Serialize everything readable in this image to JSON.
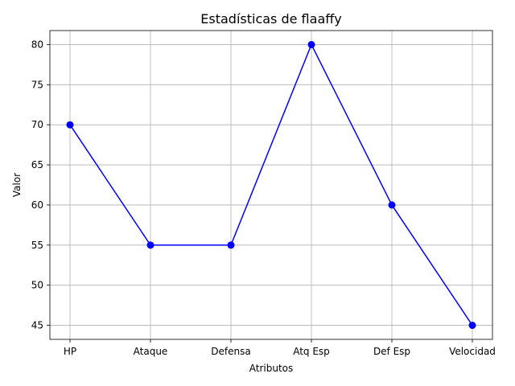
{
  "chart_data": {
    "type": "line",
    "title": "Estadísticas de flaaffy",
    "xlabel": "Atributos",
    "ylabel": "Valor",
    "categories": [
      "HP",
      "Ataque",
      "Defensa",
      "Atq Esp",
      "Def Esp",
      "Velocidad"
    ],
    "series": [
      {
        "values": [
          70,
          55,
          55,
          80,
          60,
          45
        ],
        "color": "#0000ff",
        "marker": "circle"
      }
    ],
    "yticks": [
      45,
      50,
      55,
      60,
      65,
      70,
      75,
      80
    ],
    "ylim": [
      43.25,
      81.75
    ],
    "grid": true
  }
}
